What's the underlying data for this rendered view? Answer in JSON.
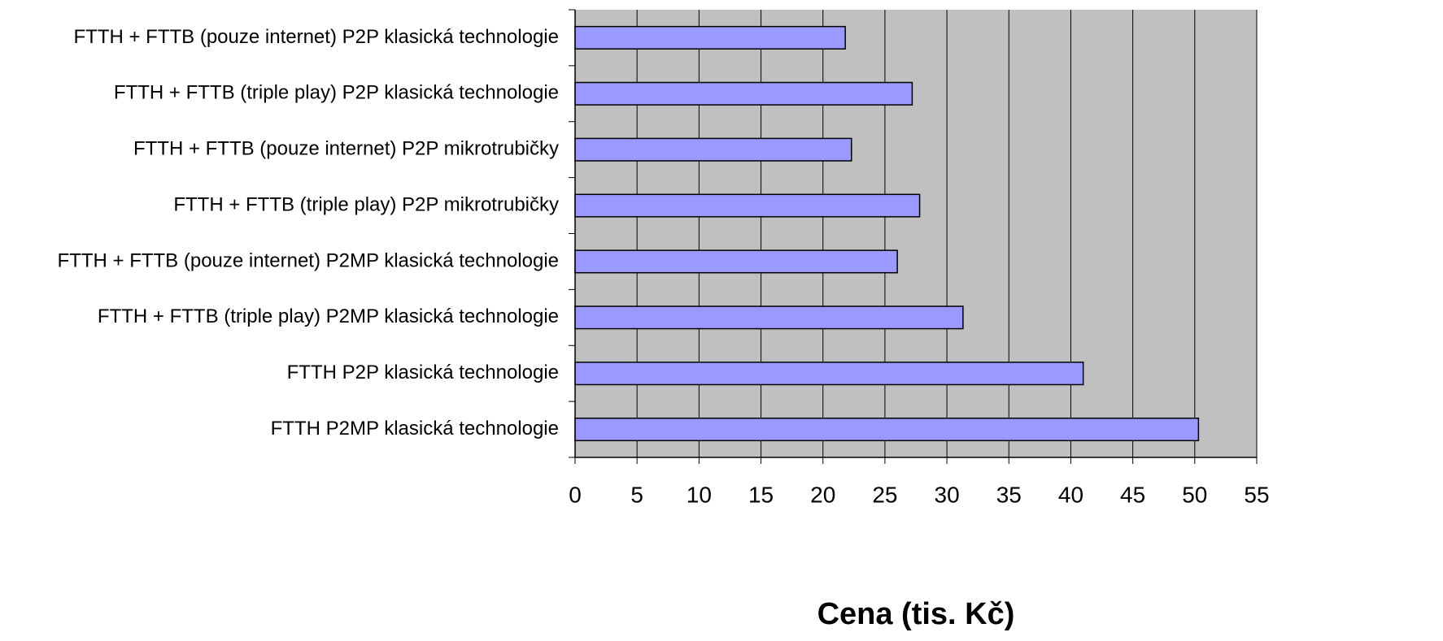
{
  "chart_data": {
    "type": "barh",
    "xlabel": "Cena (tis. Kč)",
    "categories": [
      "FTTH + FTTB (pouze internet) P2P klasická technologie",
      "FTTH + FTTB (triple play) P2P klasická technologie",
      "FTTH + FTTB (pouze internet) P2P mikrotrubičky",
      "FTTH + FTTB (triple play) P2P mikrotrubičky",
      "FTTH + FTTB (pouze internet) P2MP klasická technologie",
      "FTTH + FTTB (triple play) P2MP klasická technologie",
      "FTTH P2P klasická technologie",
      "FTTH P2MP klasická technologie"
    ],
    "values": [
      21.8,
      27.2,
      22.3,
      27.8,
      26.0,
      31.3,
      41.0,
      50.3
    ],
    "color": "#9999ff",
    "background": "#c0c0c0",
    "xlim": [
      0,
      55
    ],
    "xticks": [
      0,
      5,
      10,
      15,
      20,
      25,
      30,
      35,
      40,
      45,
      50,
      55
    ],
    "grid": true
  }
}
